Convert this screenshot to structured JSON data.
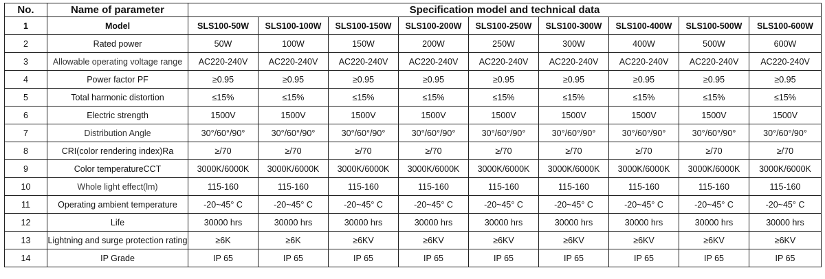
{
  "header": {
    "no": "No.",
    "parameter": "Name of parameter",
    "spec": "Specification model and technical data"
  },
  "rows": [
    {
      "no": "1",
      "param": "Model",
      "values": [
        "SLS100-50W",
        "SLS100-100W",
        "SLS100-150W",
        "SLS100-200W",
        "SLS100-250W",
        "SLS100-300W",
        "SLS100-400W",
        "SLS100-500W",
        "SLS100-600W"
      ]
    },
    {
      "no": "2",
      "param": "Rated power",
      "values": [
        "50W",
        "100W",
        "150W",
        "200W",
        "250W",
        "300W",
        "400W",
        "500W",
        "600W"
      ]
    },
    {
      "no": "3",
      "param": "Allowable operating voltage range",
      "values": [
        "AC220-240V",
        "AC220-240V",
        "AC220-240V",
        "AC220-240V",
        "AC220-240V",
        "AC220-240V",
        "AC220-240V",
        "AC220-240V",
        "AC220-240V"
      ]
    },
    {
      "no": "4",
      "param": "Power factor PF",
      "values": [
        "≥0.95",
        "≥0.95",
        "≥0.95",
        "≥0.95",
        "≥0.95",
        "≥0.95",
        "≥0.95",
        "≥0.95",
        "≥0.95"
      ]
    },
    {
      "no": "5",
      "param": "Total harmonic distortion",
      "values": [
        "≤15%",
        "≤15%",
        "≤15%",
        "≤15%",
        "≤15%",
        "≤15%",
        "≤15%",
        "≤15%",
        "≤15%"
      ]
    },
    {
      "no": "6",
      "param": "Electric strength",
      "values": [
        "1500V",
        "1500V",
        "1500V",
        "1500V",
        "1500V",
        "1500V",
        "1500V",
        "1500V",
        "1500V"
      ]
    },
    {
      "no": "7",
      "param": "Distribution Angle",
      "values": [
        "30°/60°/90°",
        "30°/60°/90°",
        "30°/60°/90°",
        "30°/60°/90°",
        "30°/60°/90°",
        "30°/60°/90°",
        "30°/60°/90°",
        "30°/60°/90°",
        "30°/60°/90°"
      ]
    },
    {
      "no": "8",
      "param": "CRI(color rendering index)Ra",
      "values": [
        "≥/70",
        "≥/70",
        "≥/70",
        "≥/70",
        "≥/70",
        "≥/70",
        "≥/70",
        "≥/70",
        "≥/70"
      ]
    },
    {
      "no": "9",
      "param": "Color temperatureCCT",
      "values": [
        "3000K/6000K",
        "3000K/6000K",
        "3000K/6000K",
        "3000K/6000K",
        "3000K/6000K",
        "3000K/6000K",
        "3000K/6000K",
        "3000K/6000K",
        "3000K/6000K"
      ]
    },
    {
      "no": "10",
      "param": "Whole light effect(lm)",
      "values": [
        "115-160",
        "115-160",
        "115-160",
        "115-160",
        "115-160",
        "115-160",
        "115-160",
        "115-160",
        "115-160"
      ]
    },
    {
      "no": "11",
      "param": "Operating ambient temperature",
      "values": [
        "-20~45° C",
        "-20~45° C",
        "-20~45° C",
        "-20~45° C",
        "-20~45° C",
        "-20~45° C",
        "-20~45° C",
        "-20~45° C",
        "-20~45° C"
      ]
    },
    {
      "no": "12",
      "param": "Life",
      "values": [
        "30000 hrs",
        "30000 hrs",
        "30000 hrs",
        "30000 hrs",
        "30000 hrs",
        "30000 hrs",
        "30000 hrs",
        "30000 hrs",
        "30000 hrs"
      ]
    },
    {
      "no": "13",
      "param": "Lightning and surge protection rating",
      "values": [
        "≥6K",
        "≥6K",
        "≥6KV",
        "≥6KV",
        "≥6KV",
        "≥6KV",
        "≥6KV",
        "≥6KV",
        "≥6KV"
      ]
    },
    {
      "no": "14",
      "param": "IP Grade",
      "values": [
        "IP 65",
        "IP 65",
        "IP 65",
        "IP 65",
        "IP 65",
        "IP 65",
        "IP 65",
        "IP 65",
        "IP 65"
      ]
    }
  ]
}
